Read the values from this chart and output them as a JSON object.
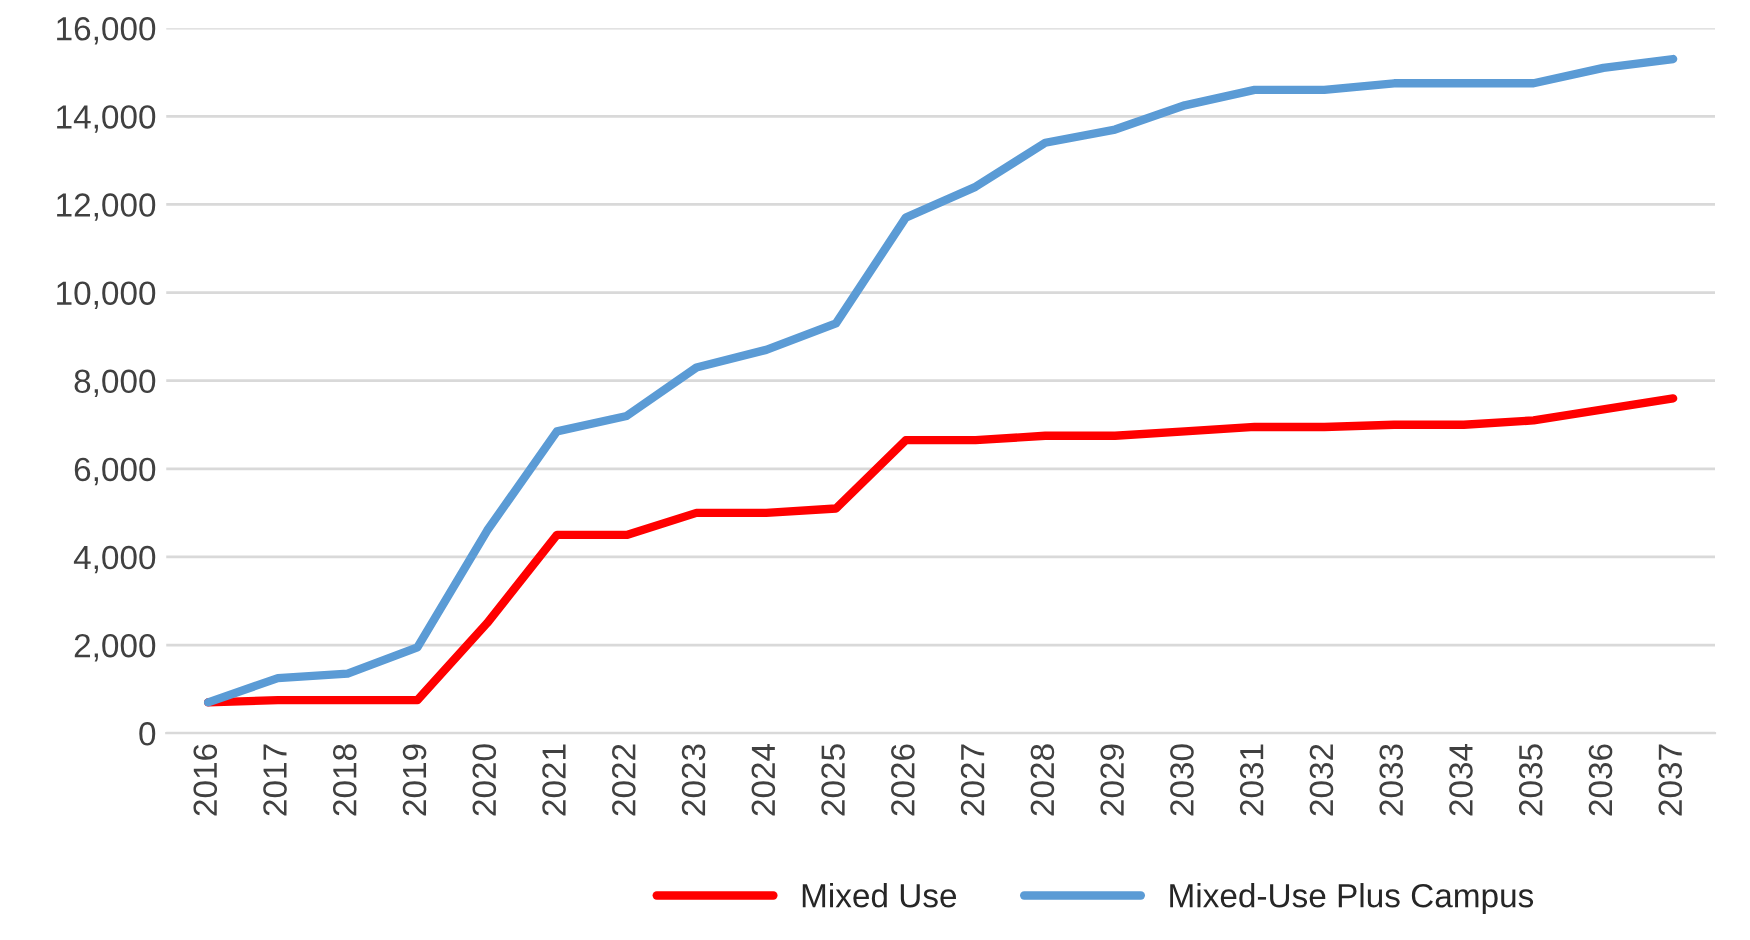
{
  "chart_data": {
    "type": "line",
    "categories": [
      "2016",
      "2017",
      "2018",
      "2019",
      "2020",
      "2021",
      "2022",
      "2023",
      "2024",
      "2025",
      "2026",
      "2027",
      "2028",
      "2029",
      "2030",
      "2031",
      "2032",
      "2033",
      "2034",
      "2035",
      "2036",
      "2037"
    ],
    "series": [
      {
        "name": "Mixed Use",
        "color": "#ff0000",
        "values": [
          700,
          750,
          750,
          750,
          2500,
          4500,
          4500,
          5000,
          5000,
          5100,
          6650,
          6650,
          6750,
          6750,
          6850,
          6950,
          6950,
          7000,
          7000,
          7100,
          7350,
          7600
        ]
      },
      {
        "name": "Mixed-Use Plus Campus",
        "color": "#5b9bd5",
        "values": [
          700,
          1250,
          1350,
          1950,
          4600,
          6850,
          7200,
          8300,
          8700,
          9300,
          11700,
          12400,
          13400,
          13700,
          14250,
          14600,
          14600,
          14750,
          14750,
          14750,
          15100,
          15300
        ]
      }
    ],
    "ylim": [
      0,
      16000
    ],
    "yticks": [
      {
        "value": 0,
        "label": "0"
      },
      {
        "value": 2000,
        "label": "2,000"
      },
      {
        "value": 4000,
        "label": "4,000"
      },
      {
        "value": 6000,
        "label": "6,000"
      },
      {
        "value": 8000,
        "label": "8,000"
      },
      {
        "value": 10000,
        "label": "10,000"
      },
      {
        "value": 12000,
        "label": "12,000"
      },
      {
        "value": 14000,
        "label": "14,000"
      },
      {
        "value": 16000,
        "label": "16,000"
      }
    ],
    "grid": "y",
    "legend": "bottom"
  }
}
